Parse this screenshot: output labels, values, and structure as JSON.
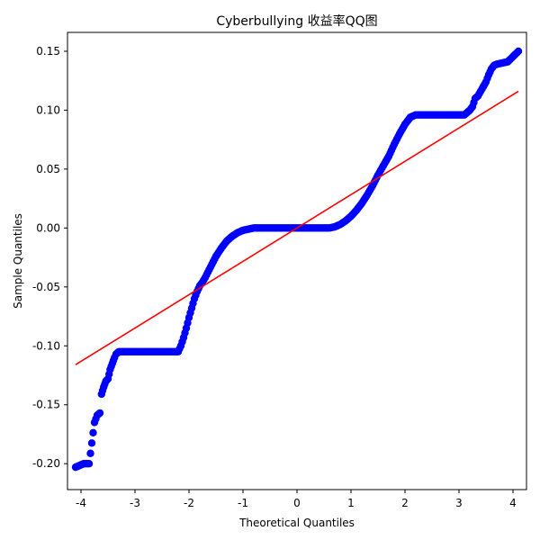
{
  "chart_data": {
    "type": "scatter",
    "title": "Cyberbullying 收益率QQ图",
    "xlabel": "Theoretical Quantiles",
    "ylabel": "Sample Quantiles",
    "xlim": [
      -4.25,
      4.25
    ],
    "ylim": [
      -0.222,
      0.166
    ],
    "x_ticks": [
      -4,
      -3,
      -2,
      -1,
      0,
      1,
      2,
      3,
      4
    ],
    "x_tick_labels": [
      "-4",
      "-3",
      "-2",
      "-1",
      "0",
      "1",
      "2",
      "3",
      "4"
    ],
    "y_ticks": [
      -0.2,
      -0.15,
      -0.1,
      -0.05,
      0.0,
      0.05,
      0.1,
      0.15
    ],
    "y_tick_labels": [
      "-0.20",
      "-0.15",
      "-0.10",
      "-0.05",
      "0.00",
      "0.05",
      "0.10",
      "0.15"
    ],
    "grid": false,
    "colors": {
      "points": "#0000ff",
      "reference_line": "#ff0000"
    },
    "series": [
      {
        "kind": "points",
        "x": [
          -4.1,
          -3.95,
          -3.85,
          -3.75,
          -3.7,
          -3.65,
          -3.62,
          -3.58,
          -3.54,
          -3.5,
          -3.46,
          -3.42,
          -3.38,
          -3.35,
          -3.3,
          -3.25,
          -3.2,
          -3.0,
          -2.8,
          -2.6,
          -2.4,
          -2.2,
          -2.15,
          -2.1,
          -2.05,
          -2.0,
          -1.95,
          -1.9,
          -1.85,
          -1.8,
          -1.75,
          -1.7,
          -1.6,
          -1.5,
          -1.4,
          -1.3,
          -1.2,
          -1.1,
          -1.0,
          -0.9,
          -0.8,
          -0.7,
          -0.5,
          -0.3,
          0.0,
          0.3,
          0.6,
          0.7,
          0.8,
          0.9,
          1.0,
          1.1,
          1.2,
          1.3,
          1.4,
          1.5,
          1.6,
          1.7,
          1.8,
          1.9,
          2.0,
          2.1,
          2.2,
          2.25,
          2.5,
          2.8,
          3.1,
          3.2,
          3.25,
          3.3,
          3.35,
          3.4,
          3.45,
          3.5,
          3.55,
          3.6,
          3.65,
          3.7,
          3.8,
          3.9,
          4.1
        ],
        "y": [
          -0.203,
          -0.2,
          -0.2,
          -0.165,
          -0.159,
          -0.157,
          -0.141,
          -0.135,
          -0.13,
          -0.128,
          -0.12,
          -0.115,
          -0.11,
          -0.107,
          -0.105,
          -0.105,
          -0.105,
          -0.105,
          -0.105,
          -0.105,
          -0.105,
          -0.105,
          -0.1,
          -0.093,
          -0.085,
          -0.076,
          -0.068,
          -0.06,
          -0.054,
          -0.049,
          -0.046,
          -0.042,
          -0.033,
          -0.024,
          -0.017,
          -0.011,
          -0.007,
          -0.004,
          -0.002,
          -0.001,
          0.0,
          0.0,
          0.0,
          0.0,
          0.0,
          0.0,
          0.0,
          0.001,
          0.003,
          0.006,
          0.01,
          0.015,
          0.021,
          0.028,
          0.036,
          0.045,
          0.053,
          0.061,
          0.071,
          0.08,
          0.088,
          0.094,
          0.096,
          0.096,
          0.096,
          0.096,
          0.096,
          0.1,
          0.103,
          0.11,
          0.112,
          0.116,
          0.12,
          0.124,
          0.13,
          0.135,
          0.138,
          0.139,
          0.14,
          0.141,
          0.15
        ]
      },
      {
        "kind": "reference_line",
        "x": [
          -4.1,
          4.1
        ],
        "y": [
          -0.116,
          0.116
        ]
      }
    ]
  }
}
